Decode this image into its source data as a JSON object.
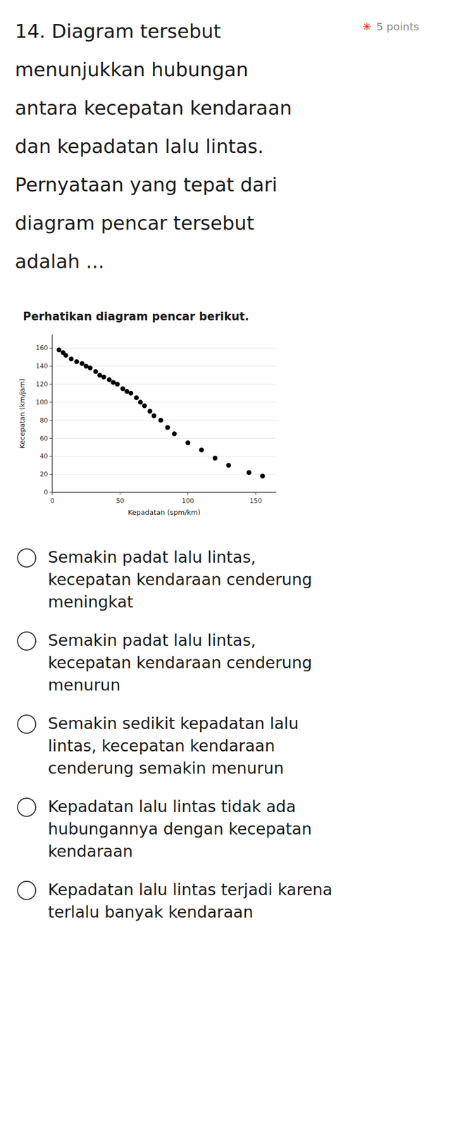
{
  "title_lines": [
    "14. Diagram tersebut",
    "menunjukkan hubungan",
    "antara kecepatan kendaraan",
    "dan kepadatan lalu lintas.",
    "Pernyataan yang tepat dari",
    "diagram pencar tersebut",
    "adalah ..."
  ],
  "points_icon": "✳",
  "points_label": "5 points",
  "options": [
    [
      "Semakin padat lalu lintas,",
      "kecepatan kendaraan cenderung",
      "meningkat"
    ],
    [
      "Semakin padat lalu lintas,",
      "kecepatan kendaraan cenderung",
      "menurun"
    ],
    [
      "Semakin sedikit kepadatan lalu",
      "lintas, kecepatan kendaraan",
      "cenderung semakin menurun"
    ],
    [
      "Kepadatan lalu lintas tidak ada",
      "hubungannya dengan kecepatan",
      "kendaraan"
    ],
    [
      "Kepadatan lalu lintas terjadi karena",
      "terlalu banyak kendaraan"
    ]
  ],
  "chart_data": {
    "type": "scatter",
    "title": "Perhatikan diagram pencar berikut.",
    "xlabel": "Kepadatan (spm/km)",
    "ylabel": "Kecepatan (km/jam)",
    "x": [
      5,
      8,
      10,
      14,
      18,
      22,
      25,
      28,
      32,
      35,
      38,
      42,
      45,
      48,
      52,
      55,
      58,
      62,
      65,
      68,
      72,
      75,
      80,
      85,
      90,
      100,
      110,
      120,
      130,
      145,
      155
    ],
    "values": [
      158,
      155,
      152,
      148,
      145,
      143,
      140,
      138,
      134,
      130,
      128,
      125,
      122,
      120,
      115,
      112,
      110,
      105,
      100,
      96,
      90,
      85,
      80,
      72,
      65,
      55,
      47,
      38,
      30,
      22,
      18
    ],
    "color": "#000000",
    "xlim": [
      0,
      165
    ],
    "ylim": [
      0,
      175
    ],
    "xticks": [
      0,
      50,
      100,
      150
    ],
    "yticks": [
      0,
      20,
      40,
      60,
      80,
      100,
      120,
      140,
      160
    ]
  }
}
